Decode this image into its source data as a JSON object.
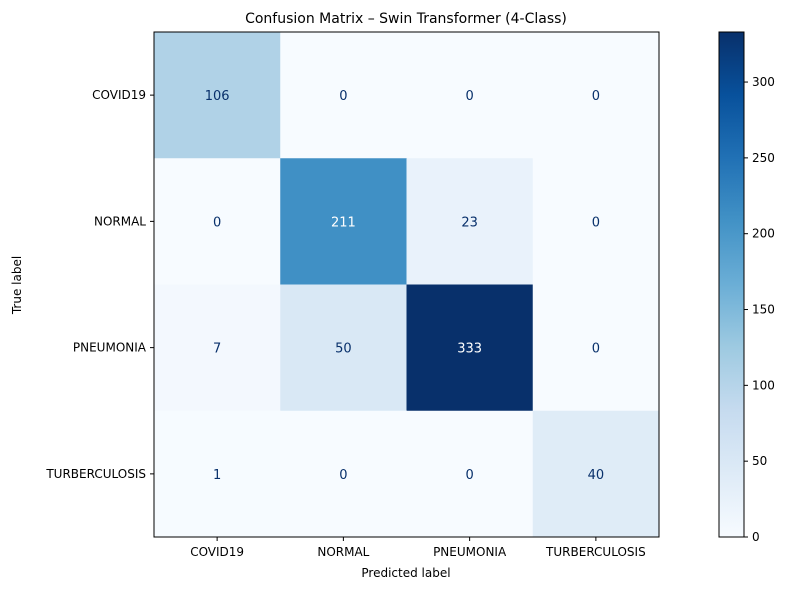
{
  "chart_data": {
    "type": "heatmap",
    "title": "Confusion Matrix – Swin Transformer (4-Class)",
    "xlabel": "Predicted label",
    "ylabel": "True label",
    "x_categories": [
      "COVID19",
      "NORMAL",
      "PNEUMONIA",
      "TURBERCULOSIS"
    ],
    "y_categories": [
      "COVID19",
      "NORMAL",
      "PNEUMONIA",
      "TURBERCULOSIS"
    ],
    "values": [
      [
        106,
        0,
        0,
        0
      ],
      [
        0,
        211,
        23,
        0
      ],
      [
        7,
        50,
        333,
        0
      ],
      [
        1,
        0,
        0,
        40
      ]
    ],
    "colormap": "Blues",
    "colorbar": {
      "min": 0,
      "max": 333,
      "ticks": [
        0,
        50,
        100,
        150,
        200,
        250,
        300
      ]
    },
    "grid": false
  }
}
